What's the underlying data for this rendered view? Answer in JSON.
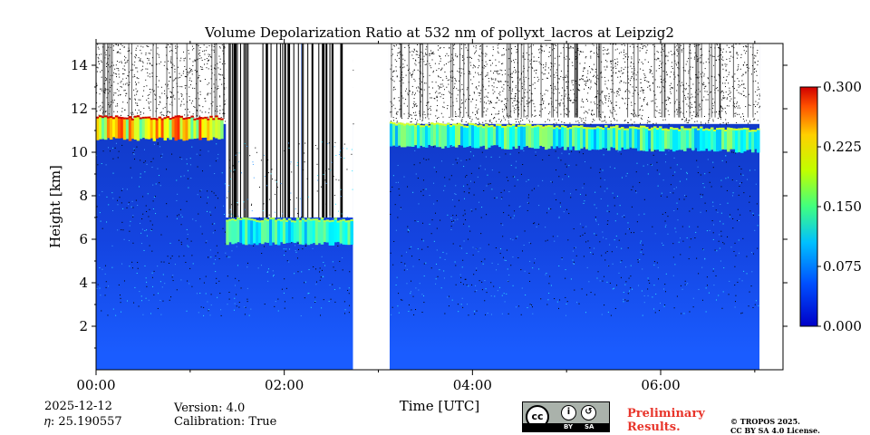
{
  "chart_data": {
    "type": "heatmap",
    "title": "Volume Depolarization Ratio at 532 nm of pollyxt_lacros at Leipzig2",
    "xlabel": "Time [UTC]",
    "ylabel": "Height [km]",
    "x_ticks": [
      "00:00",
      "02:00",
      "04:00",
      "06:00"
    ],
    "x_tick_values_hours": [
      0,
      2,
      4,
      6
    ],
    "xlim_hours": [
      0,
      7.3
    ],
    "y_ticks": [
      "2",
      "4",
      "6",
      "8",
      "10",
      "12",
      "14"
    ],
    "y_tick_values_km": [
      2,
      4,
      6,
      8,
      10,
      12,
      14
    ],
    "ylim_km": [
      0,
      15
    ],
    "colorbar": {
      "ticks": [
        "0.000",
        "0.075",
        "0.150",
        "0.225",
        "0.300"
      ],
      "values": [
        0.0,
        0.075,
        0.15,
        0.225,
        0.3
      ],
      "range": [
        0.0,
        0.3
      ],
      "colormap": "jet"
    },
    "data_gaps_hours": [
      [
        2.73,
        3.12
      ],
      [
        7.05,
        7.3
      ]
    ],
    "features": [
      {
        "name": "cirrus layer",
        "start_h": 0.0,
        "end_h": 1.35,
        "base_km": 10.5,
        "top_km": 11.7,
        "ratio": 0.25
      },
      {
        "name": "mid-level cloud",
        "start_h": 1.38,
        "end_h": 2.73,
        "base_km": 5.7,
        "top_km": 7.0,
        "ratio": 0.15
      },
      {
        "name": "cirrus layer",
        "start_h": 3.12,
        "end_h": 7.05,
        "base_km": 10.2,
        "top_km": 11.4,
        "ratio": 0.16
      }
    ],
    "background_ratio": 0.02
  },
  "info": {
    "date": "2025-12-12",
    "eta": "𝜂: 25.190557",
    "version": "Version: 4.0",
    "calibration": "Calibration: True"
  },
  "license": {
    "cc": "cc",
    "by": "BY",
    "sa": "SA",
    "preliminary_line1": "Preliminary",
    "preliminary_line2": "Results.",
    "copyright_line1": "© TROPOS 2025.",
    "copyright_line2": "CC BY SA 4.0 License."
  }
}
